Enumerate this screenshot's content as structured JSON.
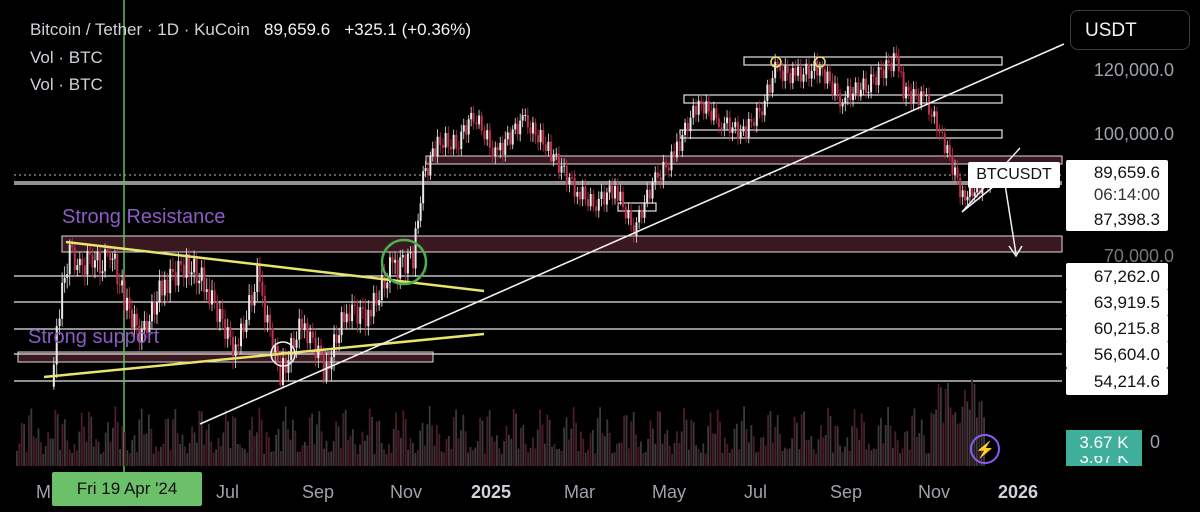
{
  "header": {
    "symbol": "Bitcoin / Tether · 1D · KuCoin",
    "last": "89,659.6",
    "change": "+325.1 (+0.36%)",
    "line2": "Vol · BTC",
    "line3": "Vol · BTC"
  },
  "currency_button": "USDT",
  "symbol_tag": "BTCUSDT",
  "price_tag": {
    "price": "89,659.6",
    "countdown": "06:14:00"
  },
  "volume_tag": "3.67 K",
  "volume_tag_partial": "3.67 K",
  "volume_axis_partial": "0",
  "crosshair_date": "Fri 19 Apr '24",
  "annotations": {
    "resistance": "Strong Resistance",
    "support": "Strong support"
  },
  "colors": {
    "up": "#e9e9e9",
    "down": "#c0324b",
    "trendline": "#e8e46a",
    "zone": "#3a1820",
    "crosshair": "#5fbf5b",
    "accent": "#8b5cf6"
  },
  "icons": {
    "bolt": "lightning-bolt-icon"
  },
  "chart_data": {
    "type": "line",
    "title": "Bitcoin / Tether · 1D · KuCoin",
    "xlabel": "",
    "ylabel": "",
    "x_ticks": [
      "M",
      "Jul",
      "Sep",
      "Nov",
      "2025",
      "Mar",
      "May",
      "Jul",
      "Sep",
      "Nov",
      "2026"
    ],
    "y_ticks": [
      70000,
      100000,
      120000
    ],
    "level_labels": [
      "87,398.3",
      "67,262.0",
      "63,919.5",
      "60,215.8",
      "56,604.0",
      "54,214.6"
    ],
    "levels": [
      87398.3,
      67262.0,
      63919.5,
      60215.8,
      56604.0,
      54214.6
    ],
    "series": [
      {
        "x": [
          "2024-02-28",
          "2024-03-05",
          "2024-03-12",
          "2024-03-19",
          "2024-03-26",
          "2024-04-02",
          "2024-04-09",
          "2024-04-19",
          "2024-05-01",
          "2024-05-15",
          "2024-06-01",
          "2024-06-15",
          "2024-07-05",
          "2024-07-20",
          "2024-08-05",
          "2024-08-20",
          "2024-09-06",
          "2024-09-20",
          "2024-10-05",
          "2024-10-20",
          "2024-11-05",
          "2024-11-12",
          "2024-11-22",
          "2024-12-05",
          "2024-12-17",
          "2025-01-01",
          "2025-01-20",
          "2025-02-05",
          "2025-02-25",
          "2025-03-10",
          "2025-03-25",
          "2025-04-07",
          "2025-04-20",
          "2025-05-05",
          "2025-05-22",
          "2025-06-05",
          "2025-06-22",
          "2025-07-05",
          "2025-07-14",
          "2025-07-28",
          "2025-08-14",
          "2025-08-28",
          "2025-09-15",
          "2025-10-06",
          "2025-10-11",
          "2025-10-25",
          "2025-11-05",
          "2025-11-21",
          "2025-12-01",
          "2025-12-10"
        ],
        "values": [
          52000,
          63000,
          71000,
          68000,
          70000,
          69000,
          71000,
          64000,
          59000,
          66000,
          69000,
          66000,
          57000,
          67000,
          54000,
          61000,
          55000,
          63000,
          62000,
          68000,
          70000,
          88000,
          98000,
          97000,
          106000,
          94000,
          104000,
          97000,
          86000,
          82000,
          86000,
          76000,
          87000,
          94000,
          110000,
          104000,
          100000,
          108000,
          120000,
          118000,
          121000,
          111000,
          115000,
          124000,
          113000,
          111000,
          101000,
          84000,
          86000,
          89659.6
        ]
      }
    ],
    "volume_label": "Vol · BTC"
  }
}
